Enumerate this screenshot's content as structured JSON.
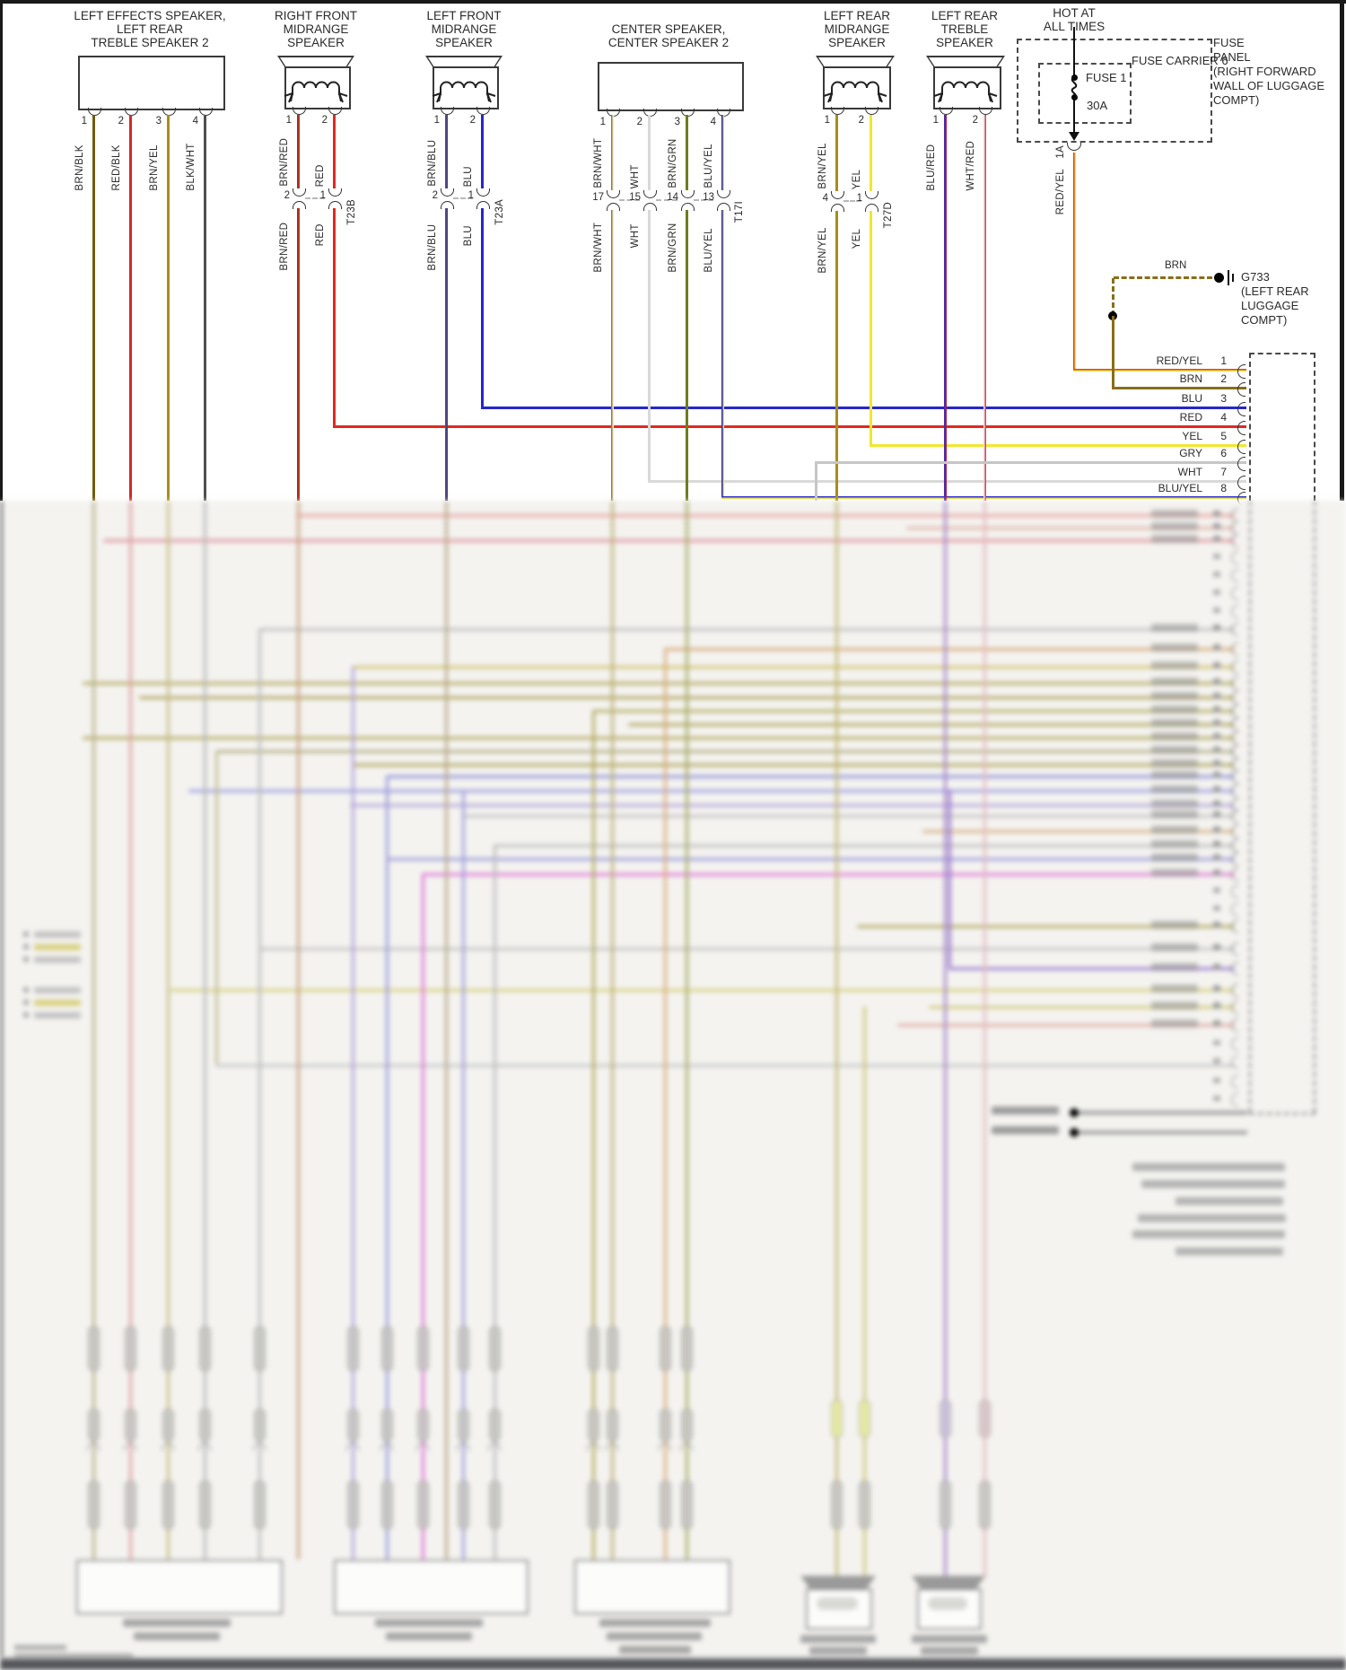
{
  "speakers": [
    {
      "id": "left-effects-speaker",
      "title_lines": [
        "LEFT EFFECTS SPEAKER,",
        "LEFT REAR",
        "TREBLE SPEAKER 2"
      ],
      "pins": [
        {
          "num": "1",
          "code": "BRN/BLK"
        },
        {
          "num": "2",
          "code": "RED/BLK"
        },
        {
          "num": "3",
          "code": "BRN/YEL"
        },
        {
          "num": "4",
          "code": "BLK/WHT"
        }
      ]
    },
    {
      "id": "right-front-midrange-speaker",
      "title_lines": [
        "RIGHT FRONT",
        "MIDRANGE",
        "SPEAKER"
      ],
      "pins": [
        {
          "num": "1",
          "code": "BRN/RED"
        },
        {
          "num": "2",
          "code": "RED"
        }
      ],
      "break": {
        "connector": "T23B",
        "pin_nums": [
          "2",
          "1"
        ],
        "codes": [
          "BRN/RED",
          "RED"
        ]
      }
    },
    {
      "id": "left-front-midrange-speaker",
      "title_lines": [
        "LEFT FRONT",
        "MIDRANGE",
        "SPEAKER"
      ],
      "pins": [
        {
          "num": "1",
          "code": "BRN/BLU"
        },
        {
          "num": "2",
          "code": "BLU"
        }
      ],
      "break": {
        "connector": "T23A",
        "pin_nums": [
          "2",
          "1"
        ],
        "codes": [
          "BRN/BLU",
          "BLU"
        ]
      }
    },
    {
      "id": "center-speaker",
      "title_lines": [
        "CENTER SPEAKER,",
        "CENTER SPEAKER 2"
      ],
      "pins": [
        {
          "num": "1",
          "code": "BRN/WHT"
        },
        {
          "num": "2",
          "code": "WHT"
        },
        {
          "num": "3",
          "code": "BRN/GRN"
        },
        {
          "num": "4",
          "code": "BLU/YEL"
        }
      ],
      "break": {
        "connector": "T17I",
        "pin_nums": [
          "17",
          "15",
          "14",
          "13"
        ],
        "codes": [
          "BRN/WHT",
          "WHT",
          "BRN/GRN",
          "BLU/YEL"
        ]
      }
    },
    {
      "id": "left-rear-midrange-speaker",
      "title_lines": [
        "LEFT REAR",
        "MIDRANGE",
        "SPEAKER"
      ],
      "pins": [
        {
          "num": "1",
          "code": "BRN/YEL"
        },
        {
          "num": "2",
          "code": "YEL"
        }
      ],
      "break": {
        "connector": "T27D",
        "pin_nums": [
          "4",
          "1"
        ],
        "codes": [
          "BRN/YEL",
          "YEL"
        ]
      }
    },
    {
      "id": "left-rear-treble-speaker",
      "title_lines": [
        "LEFT REAR",
        "TREBLE",
        "SPEAKER"
      ],
      "pins": [
        {
          "num": "1",
          "code": "BLU/RED"
        },
        {
          "num": "2",
          "code": "WHT/RED"
        }
      ]
    }
  ],
  "power": {
    "hot_lines": [
      "HOT AT",
      "ALL TIMES"
    ],
    "fuse_label": "FUSE 1",
    "fuse_rating": "30A",
    "carrier_label": "FUSE CARRIER 6",
    "panel_lines": [
      "FUSE",
      "PANEL",
      "(RIGHT FORWARD",
      "WALL OF LUGGAGE",
      "COMPT)"
    ],
    "feed_pin": "1A",
    "feed_code": "RED/YEL"
  },
  "ground": {
    "code": "BRN",
    "name": "G733",
    "location_lines": [
      "(LEFT REAR",
      "LUGGAGE",
      "COMPT)"
    ]
  },
  "amplifier_connector": {
    "rows": [
      {
        "pin": "1",
        "code": "RED/YEL"
      },
      {
        "pin": "2",
        "code": "BRN"
      },
      {
        "pin": "3",
        "code": "BLU"
      },
      {
        "pin": "4",
        "code": "RED"
      },
      {
        "pin": "5",
        "code": "YEL"
      },
      {
        "pin": "6",
        "code": "GRY"
      },
      {
        "pin": "7",
        "code": "WHT"
      },
      {
        "pin": "8",
        "code": "BLU/YEL"
      }
    ]
  },
  "wire_colors": {
    "BRN/BLK": [
      "#6e5c10"
    ],
    "RED/BLK": [
      "#cf2a2a"
    ],
    "BRN/YEL": [
      "#a78d1c"
    ],
    "BLK/WHT": [
      "#4f4f4f"
    ],
    "BRN/RED": [
      "#7a4413",
      "#cf2a2a"
    ],
    "RED": [
      "#de2a22"
    ],
    "BRN/BLU": [
      "#6a5436",
      "#3a3ab8"
    ],
    "BLU": [
      "#2626cc"
    ],
    "BRN/WHT": [
      "#97821e",
      "#e8e8e8"
    ],
    "WHT": [
      "#d9d9d9"
    ],
    "BRN/GRN": [
      "#6e7c1e"
    ],
    "BLU/YEL": [
      "#2626cc",
      "#e8e23a"
    ],
    "YEL": [
      "#f2e730"
    ],
    "BLU/RED": [
      "#4a2ab0",
      "#a82040"
    ],
    "WHT/RED": [
      "#ecdada",
      "#d04858"
    ],
    "GRY": [
      "#c6c6c6"
    ],
    "RED/YEL": [
      "#e23d2e",
      "#f2e730"
    ],
    "BRN": [
      "#8a6d1a"
    ]
  }
}
